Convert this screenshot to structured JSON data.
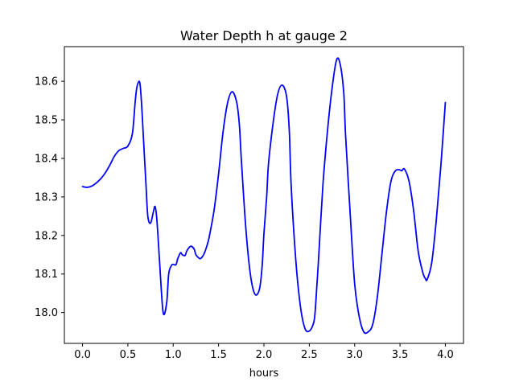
{
  "chart_data": {
    "type": "line",
    "title": "Water Depth h at gauge 2",
    "xlabel": "hours",
    "ylabel": "",
    "xlim": [
      -0.2,
      4.2
    ],
    "ylim": [
      17.92,
      18.69
    ],
    "xticks": [
      0.0,
      0.5,
      1.0,
      1.5,
      2.0,
      2.5,
      3.0,
      3.5,
      4.0
    ],
    "xtick_labels": [
      "0.0",
      "0.5",
      "1.0",
      "1.5",
      "2.0",
      "2.5",
      "3.0",
      "3.5",
      "4.0"
    ],
    "yticks": [
      18.0,
      18.1,
      18.2,
      18.3,
      18.4,
      18.5,
      18.6
    ],
    "ytick_labels": [
      "18.0",
      "18.1",
      "18.2",
      "18.3",
      "18.4",
      "18.5",
      "18.6"
    ],
    "grid": false,
    "legend": "none",
    "series": [
      {
        "color": "#0000ff",
        "x": [
          0.0,
          0.05,
          0.1,
          0.15,
          0.2,
          0.25,
          0.3,
          0.35,
          0.4,
          0.45,
          0.5,
          0.55,
          0.58,
          0.6,
          0.63,
          0.65,
          0.67,
          0.7,
          0.72,
          0.75,
          0.78,
          0.8,
          0.82,
          0.85,
          0.88,
          0.9,
          0.93,
          0.95,
          0.98,
          1.0,
          1.03,
          1.05,
          1.08,
          1.1,
          1.13,
          1.15,
          1.18,
          1.2,
          1.23,
          1.25,
          1.28,
          1.3,
          1.33,
          1.35,
          1.38,
          1.4,
          1.45,
          1.5,
          1.55,
          1.6,
          1.65,
          1.7,
          1.73,
          1.75,
          1.8,
          1.85,
          1.9,
          1.95,
          1.98,
          2.0,
          2.03,
          2.05,
          2.1,
          2.15,
          2.2,
          2.25,
          2.28,
          2.3,
          2.35,
          2.4,
          2.45,
          2.5,
          2.55,
          2.57,
          2.6,
          2.65,
          2.7,
          2.75,
          2.8,
          2.84,
          2.88,
          2.9,
          2.95,
          3.0,
          3.05,
          3.1,
          3.15,
          3.2,
          3.25,
          3.3,
          3.35,
          3.4,
          3.45,
          3.5,
          3.52,
          3.55,
          3.6,
          3.65,
          3.7,
          3.75,
          3.78,
          3.8,
          3.85,
          3.9,
          3.95,
          4.0
        ],
        "y": [
          18.327,
          18.325,
          18.328,
          18.336,
          18.347,
          18.362,
          18.382,
          18.405,
          18.42,
          18.426,
          18.432,
          18.465,
          18.545,
          18.585,
          18.598,
          18.545,
          18.46,
          18.33,
          18.25,
          18.232,
          18.26,
          18.275,
          18.24,
          18.13,
          18.02,
          17.995,
          18.03,
          18.1,
          18.122,
          18.125,
          18.124,
          18.14,
          18.155,
          18.15,
          18.148,
          18.16,
          18.17,
          18.172,
          18.165,
          18.15,
          18.142,
          18.14,
          18.148,
          18.158,
          18.18,
          18.2,
          18.265,
          18.36,
          18.47,
          18.545,
          18.573,
          18.545,
          18.485,
          18.4,
          18.22,
          18.1,
          18.048,
          18.06,
          18.12,
          18.205,
          18.3,
          18.385,
          18.49,
          18.565,
          18.59,
          18.56,
          18.47,
          18.33,
          18.14,
          18.02,
          17.96,
          17.952,
          17.975,
          18.02,
          18.13,
          18.33,
          18.47,
          18.58,
          18.655,
          18.645,
          18.57,
          18.46,
          18.26,
          18.075,
          17.99,
          17.95,
          17.95,
          17.97,
          18.04,
          18.15,
          18.26,
          18.34,
          18.368,
          18.37,
          18.368,
          18.372,
          18.34,
          18.265,
          18.16,
          18.105,
          18.088,
          18.086,
          18.13,
          18.24,
          18.38,
          18.545
        ]
      }
    ]
  }
}
